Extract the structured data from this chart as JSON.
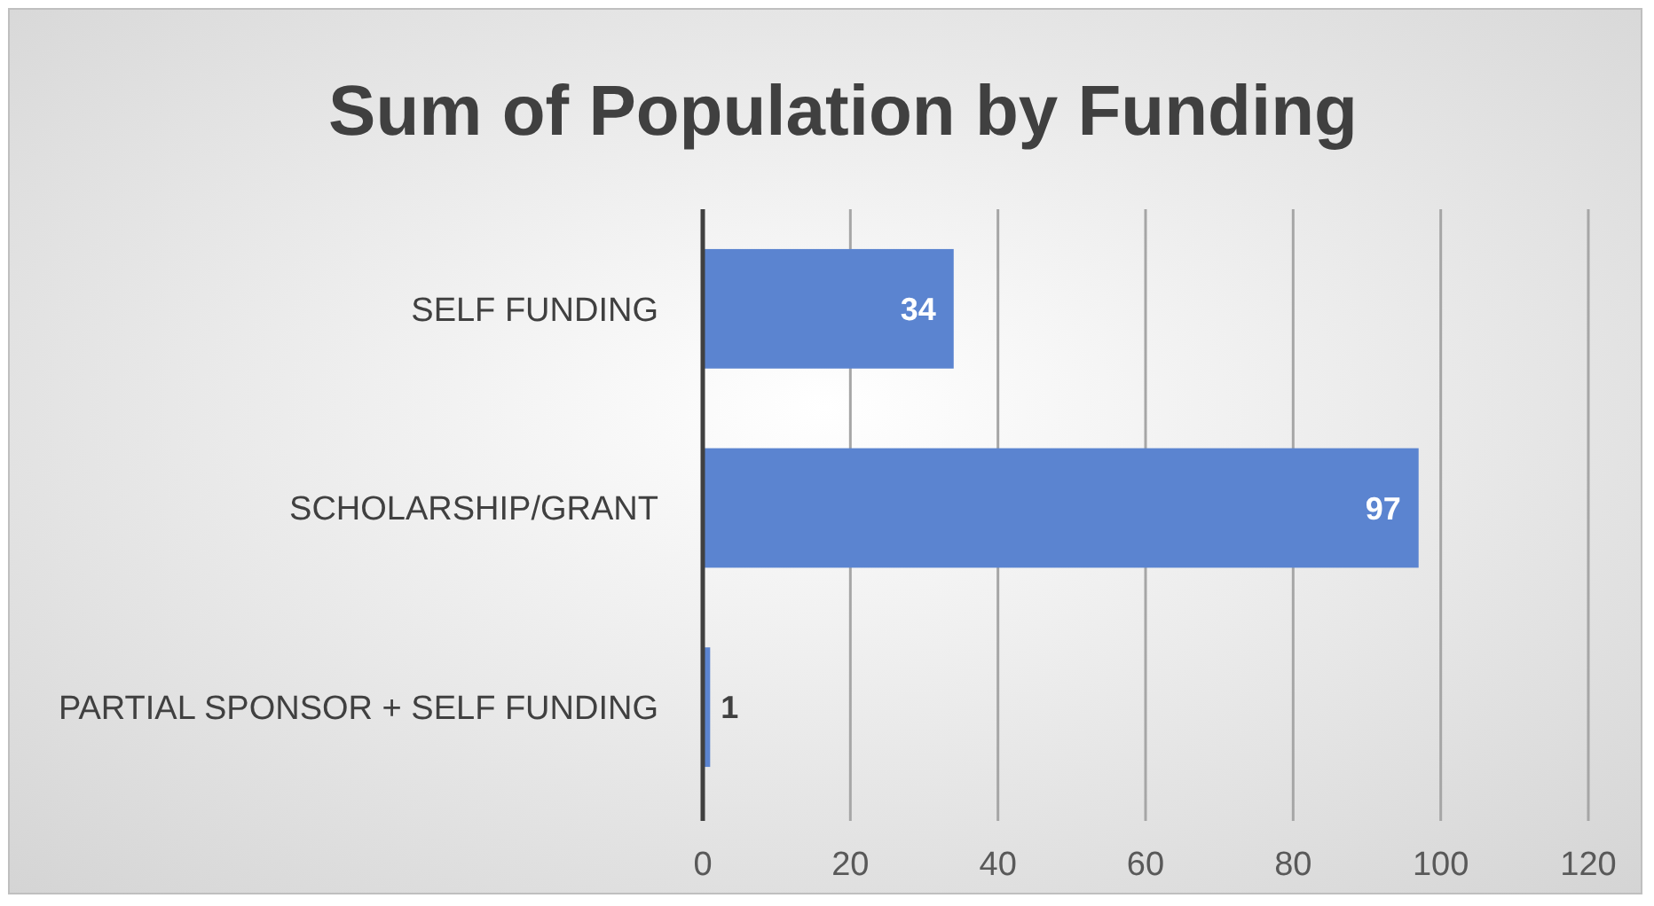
{
  "chart_data": {
    "type": "bar",
    "orientation": "horizontal",
    "title": "Sum of Population by Funding",
    "categories": [
      "SELF FUNDING",
      "SCHOLARSHIP/GRANT",
      "PARTIAL SPONSOR + SELF FUNDING"
    ],
    "values": [
      34,
      97,
      1
    ],
    "color": "#5b84d0",
    "xlim": [
      0,
      120
    ],
    "xticks": [
      0,
      20,
      40,
      60,
      80,
      100,
      120
    ],
    "grid": "x",
    "data_labels": true
  }
}
